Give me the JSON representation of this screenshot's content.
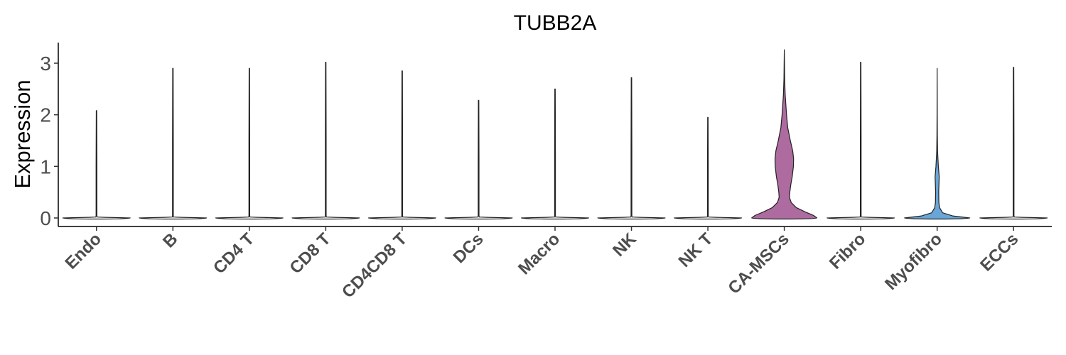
{
  "chart_data": {
    "type": "violin",
    "title": "TUBB2A",
    "xlabel": "",
    "ylabel": "Expression",
    "ylim": [
      -0.15,
      3.4
    ],
    "yticks": [
      0,
      1,
      2,
      3
    ],
    "grid": false,
    "legend": "none",
    "categories": [
      "Endo",
      "B",
      "CD4 T",
      "CD8 T",
      "CD4CD8 T",
      "DCs",
      "Macro",
      "NK",
      "NK T",
      "CA-MSCs",
      "Fibro",
      "Myofibro",
      "ECCs"
    ],
    "max_values": [
      2.08,
      2.9,
      2.9,
      3.02,
      2.85,
      2.28,
      2.5,
      2.72,
      1.95,
      3.26,
      3.02,
      2.9,
      2.92
    ],
    "colors": {
      "default_fill": "#ffffff",
      "CA-MSCs": "#ad6ba0",
      "Myofibro": "#6aa5d7"
    },
    "density_profiles": {
      "CA-MSCs": [
        [
          0.0,
          0.95
        ],
        [
          0.05,
          0.85
        ],
        [
          0.12,
          0.6
        ],
        [
          0.2,
          0.35
        ],
        [
          0.3,
          0.2
        ],
        [
          0.4,
          0.15
        ],
        [
          0.5,
          0.16
        ],
        [
          0.65,
          0.19
        ],
        [
          0.8,
          0.23
        ],
        [
          1.0,
          0.265
        ],
        [
          1.15,
          0.27
        ],
        [
          1.3,
          0.245
        ],
        [
          1.5,
          0.175
        ],
        [
          1.75,
          0.1
        ],
        [
          2.0,
          0.065
        ],
        [
          2.2,
          0.045
        ],
        [
          2.4,
          0.025
        ],
        [
          2.7,
          0.01
        ],
        [
          3.0,
          0.005
        ],
        [
          3.26,
          0.0
        ]
      ],
      "Myofibro": [
        [
          0.0,
          0.95
        ],
        [
          0.04,
          0.45
        ],
        [
          0.1,
          0.16
        ],
        [
          0.2,
          0.07
        ],
        [
          0.3,
          0.05
        ],
        [
          0.5,
          0.045
        ],
        [
          0.8,
          0.06
        ],
        [
          1.0,
          0.035
        ],
        [
          1.3,
          0.012
        ],
        [
          1.6,
          0.006
        ],
        [
          2.0,
          0.003
        ],
        [
          2.9,
          0.0
        ]
      ]
    }
  }
}
